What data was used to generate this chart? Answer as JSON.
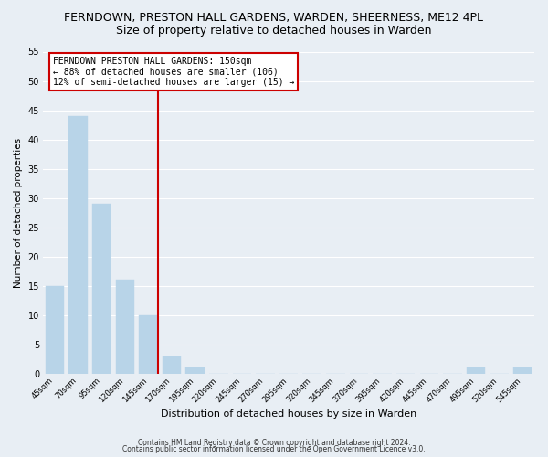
{
  "title": "FERNDOWN, PRESTON HALL GARDENS, WARDEN, SHEERNESS, ME12 4PL",
  "subtitle": "Size of property relative to detached houses in Warden",
  "xlabel": "Distribution of detached houses by size in Warden",
  "ylabel": "Number of detached properties",
  "bar_labels": [
    "45sqm",
    "70sqm",
    "95sqm",
    "120sqm",
    "145sqm",
    "170sqm",
    "195sqm",
    "220sqm",
    "245sqm",
    "270sqm",
    "295sqm",
    "320sqm",
    "345sqm",
    "370sqm",
    "395sqm",
    "420sqm",
    "445sqm",
    "470sqm",
    "495sqm",
    "520sqm",
    "545sqm"
  ],
  "bar_values": [
    15,
    44,
    29,
    16,
    10,
    3,
    1,
    0,
    0,
    0,
    0,
    0,
    0,
    0,
    0,
    0,
    0,
    0,
    1,
    0,
    1
  ],
  "bar_color": "#b8d4e8",
  "highlight_line_color": "#cc0000",
  "ylim": [
    0,
    55
  ],
  "yticks": [
    0,
    5,
    10,
    15,
    20,
    25,
    30,
    35,
    40,
    45,
    50,
    55
  ],
  "annotation_title": "FERNDOWN PRESTON HALL GARDENS: 150sqm",
  "annotation_line1": "← 88% of detached houses are smaller (106)",
  "annotation_line2": "12% of semi-detached houses are larger (15) →",
  "annotation_box_color": "#cc0000",
  "footer_line1": "Contains HM Land Registry data © Crown copyright and database right 2024.",
  "footer_line2": "Contains public sector information licensed under the Open Government Licence v3.0.",
  "background_color": "#e8eef4",
  "grid_color": "#ffffff",
  "title_fontsize": 9,
  "subtitle_fontsize": 9
}
